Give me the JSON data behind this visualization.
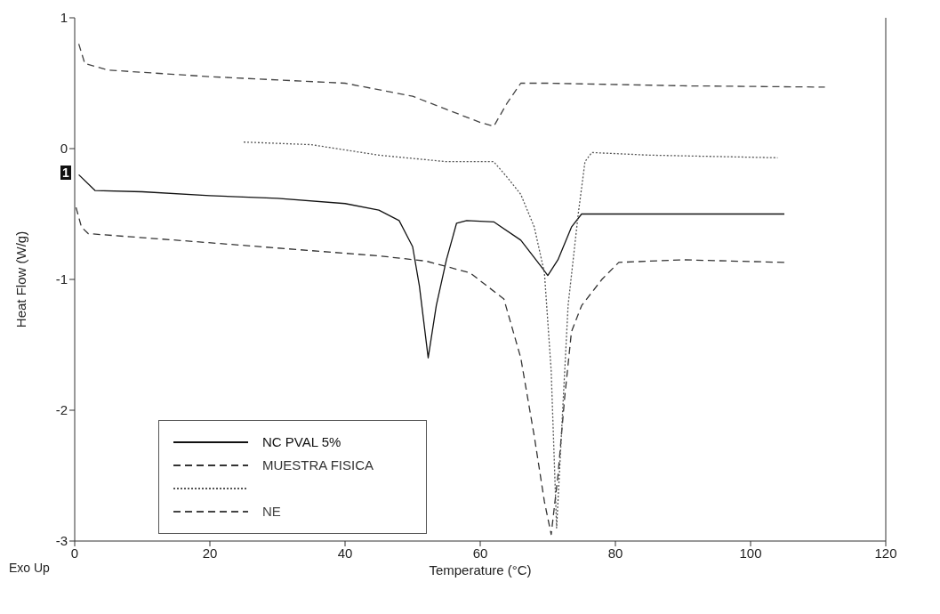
{
  "chart_data": {
    "type": "line",
    "xlabel": "Temperature (°C)",
    "ylabel": "Heat Flow (W/g)",
    "xlim": [
      0,
      120
    ],
    "xticks": [
      0,
      20,
      40,
      60,
      80,
      100,
      120
    ],
    "ylim": [
      -3,
      1
    ],
    "yticks": [
      -3,
      -2,
      -1,
      0,
      1
    ],
    "grid": false,
    "legend": "bottom left",
    "marker": "none",
    "annotations": [
      "Exo Up",
      "1"
    ],
    "series": [
      {
        "name": "NC PVAL 5%",
        "color": "#111111",
        "line_style": "solid",
        "x": [
          0.6,
          3,
          10,
          20,
          30,
          40,
          45,
          48,
          50,
          51,
          52.3,
          53.5,
          55,
          56.5,
          58,
          62,
          66,
          69,
          70,
          71.5,
          73.5,
          75,
          90,
          105
        ],
        "values": [
          -0.2,
          -0.32,
          -0.33,
          -0.36,
          -0.38,
          -0.42,
          -0.47,
          -0.55,
          -0.75,
          -1.05,
          -1.6,
          -1.2,
          -0.85,
          -0.57,
          -0.55,
          -0.56,
          -0.7,
          -0.9,
          -0.97,
          -0.85,
          -0.6,
          -0.5,
          -0.5,
          -0.5
        ]
      },
      {
        "name": "MUESTRA FISICA",
        "color": "#333333",
        "line_style": "dashed",
        "x": [
          0.2,
          1,
          2,
          15,
          30,
          45,
          52,
          58.5,
          63.5,
          66,
          68,
          69.5,
          70.5,
          71.5,
          72.5,
          73.5,
          75,
          78,
          80.5,
          90,
          105
        ],
        "values": [
          -0.45,
          -0.6,
          -0.65,
          -0.7,
          -0.76,
          -0.82,
          -0.86,
          -0.95,
          -1.15,
          -1.6,
          -2.2,
          -2.7,
          -2.95,
          -2.5,
          -1.9,
          -1.4,
          -1.2,
          -1,
          -0.87,
          -0.85,
          -0.87
        ]
      },
      {
        "color": "#555555",
        "line_style": "dotted",
        "x": [
          25,
          35,
          45,
          55,
          60,
          62,
          64,
          66,
          68,
          69.5,
          70.5,
          71.3,
          72,
          73,
          74.5,
          75.5,
          76.5,
          85,
          104
        ],
        "values": [
          0.05,
          0.03,
          -0.05,
          -0.1,
          -0.1,
          -0.1,
          -0.22,
          -0.35,
          -0.6,
          -0.95,
          -1.7,
          -2.9,
          -2.2,
          -1.2,
          -0.5,
          -0.1,
          -0.03,
          -0.05,
          -0.07
        ]
      },
      {
        "name": "NE",
        "color": "#444444",
        "line_style": "dashed",
        "x": [
          0.6,
          1.5,
          5,
          20,
          40,
          50,
          55,
          60,
          62,
          64,
          66,
          70,
          90,
          111
        ],
        "values": [
          0.8,
          0.65,
          0.6,
          0.55,
          0.5,
          0.4,
          0.3,
          0.2,
          0.17,
          0.35,
          0.5,
          0.5,
          0.48,
          0.47
        ]
      }
    ]
  }
}
